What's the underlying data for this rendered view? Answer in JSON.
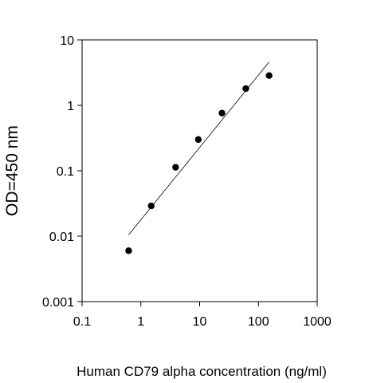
{
  "chart_data": {
    "type": "scatter",
    "title": "",
    "xlabel": "Human CD79 alpha concentration (ng/ml)",
    "ylabel": "OD=450 nm",
    "xscale": "log",
    "yscale": "log",
    "xlim": [
      0.1,
      1000
    ],
    "ylim": [
      0.001,
      10
    ],
    "x_ticks": [
      0.1,
      1,
      10,
      100,
      1000
    ],
    "y_ticks": [
      0.001,
      0.01,
      0.1,
      1,
      10
    ],
    "x_tick_labels": [
      "0.1",
      "1",
      "10",
      "100",
      "1000"
    ],
    "y_tick_labels": [
      "0.001",
      "0.01",
      "0.1",
      "1",
      "10"
    ],
    "grid": false,
    "legend": "none",
    "series": [
      {
        "x": [
          0.62,
          1.5,
          3.9,
          9.5,
          24,
          61,
          152
        ],
        "y": [
          0.006,
          0.029,
          0.113,
          0.3,
          0.76,
          1.8,
          2.85
        ]
      }
    ],
    "fit_line": {
      "x": [
        0.62,
        152
      ],
      "y": [
        0.0105,
        4.6
      ]
    },
    "colors": {
      "points": "#000000",
      "line": "#000000",
      "axes": "#000000"
    }
  }
}
